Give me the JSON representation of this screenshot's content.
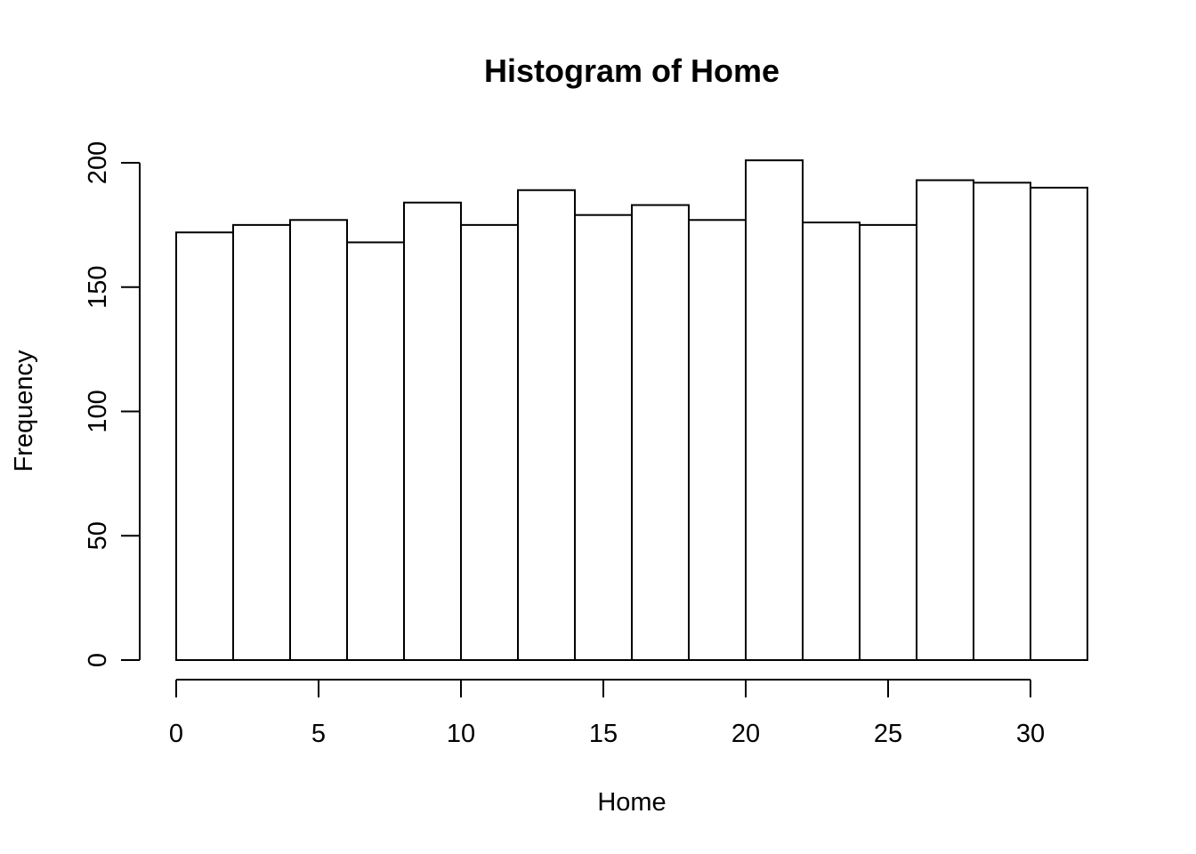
{
  "chart_data": {
    "type": "bar",
    "title": "Histogram of Home",
    "xlabel": "Home",
    "ylabel": "Frequency",
    "bin_edges": [
      0,
      2,
      4,
      6,
      8,
      10,
      12,
      14,
      16,
      18,
      20,
      22,
      24,
      26,
      28,
      30,
      32
    ],
    "values": [
      172,
      175,
      177,
      168,
      184,
      175,
      189,
      179,
      183,
      177,
      201,
      176,
      175,
      193,
      192,
      190
    ],
    "x_ticks": [
      0,
      5,
      10,
      15,
      20,
      25,
      30
    ],
    "y_ticks": [
      0,
      50,
      100,
      150,
      200
    ],
    "xlim": [
      0,
      32
    ],
    "ylim": [
      0,
      200
    ],
    "grid": false,
    "bar_fill": "#ffffff",
    "bar_stroke": "#000000"
  }
}
